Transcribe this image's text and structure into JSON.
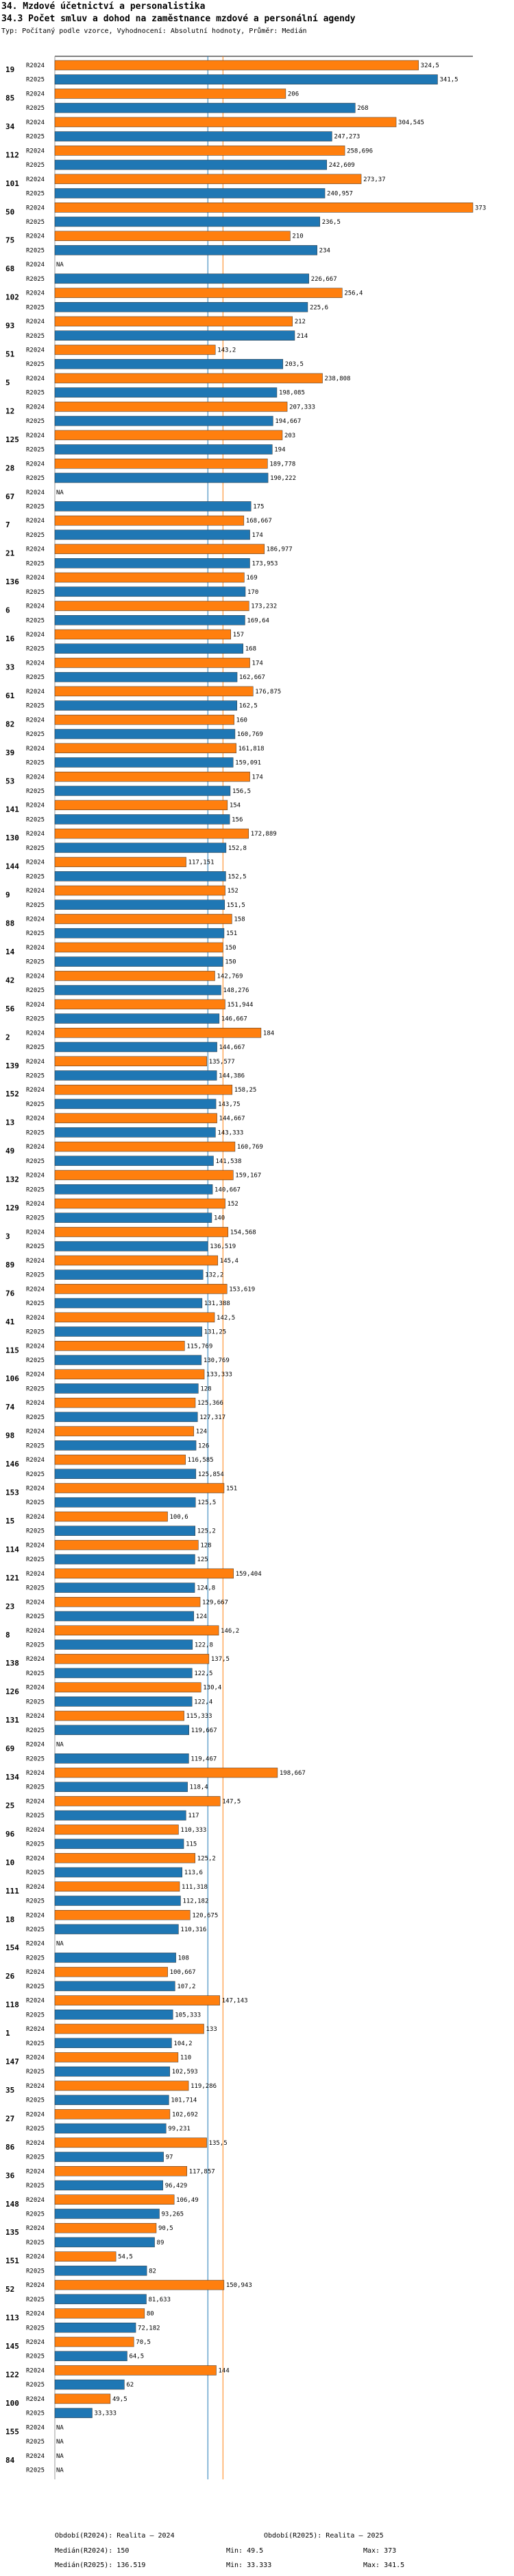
{
  "page_title": "34. Mzdové účetnictví a personalistika",
  "chart_data": {
    "type": "bar",
    "title": "34.3 Počet smluv a dohod na zaměstnance mzdové a personální agendy",
    "subtitle": "Typ: Počítaný podle vzorce, Vyhodnocení: Absolutní hodnoty, Průměr: Medián",
    "series_labels": [
      "R2024",
      "R2025"
    ],
    "series_colors": [
      "#ff7f0e",
      "#1f77b4"
    ],
    "na_label": "NA",
    "xlim": [
      0,
      373
    ],
    "medians": [
      150,
      136.519
    ],
    "median_colors": [
      "#ff7f0e",
      "#1f77b4"
    ],
    "groups": [
      {
        "id": "19",
        "values": [
          324.5,
          341.5
        ],
        "labels": [
          "324,5",
          "341,5"
        ]
      },
      {
        "id": "85",
        "values": [
          206,
          268
        ],
        "labels": [
          "206",
          "268"
        ]
      },
      {
        "id": "34",
        "values": [
          304.545,
          247.273
        ],
        "labels": [
          "304,545",
          "247,273"
        ]
      },
      {
        "id": "112",
        "values": [
          258.696,
          242.609
        ],
        "labels": [
          "258,696",
          "242,609"
        ]
      },
      {
        "id": "101",
        "values": [
          273.37,
          240.957
        ],
        "labels": [
          "273,37",
          "240,957"
        ]
      },
      {
        "id": "50",
        "values": [
          373,
          236.5
        ],
        "labels": [
          "373",
          "236,5"
        ]
      },
      {
        "id": "75",
        "values": [
          210,
          234
        ],
        "labels": [
          "210",
          "234"
        ]
      },
      {
        "id": "68",
        "values": [
          null,
          226.667
        ],
        "labels": [
          "NA",
          "226,667"
        ]
      },
      {
        "id": "102",
        "values": [
          256.4,
          225.6
        ],
        "labels": [
          "256,4",
          "225,6"
        ]
      },
      {
        "id": "93",
        "values": [
          212,
          214
        ],
        "labels": [
          "212",
          "214"
        ]
      },
      {
        "id": "51",
        "values": [
          143.2,
          203.5
        ],
        "labels": [
          "143,2",
          "203,5"
        ]
      },
      {
        "id": "5",
        "values": [
          238.808,
          198.085
        ],
        "labels": [
          "238,808",
          "198,085"
        ]
      },
      {
        "id": "12",
        "values": [
          207.333,
          194.667
        ],
        "labels": [
          "207,333",
          "194,667"
        ]
      },
      {
        "id": "125",
        "values": [
          203,
          194
        ],
        "labels": [
          "203",
          "194"
        ]
      },
      {
        "id": "28",
        "values": [
          189.778,
          190.222
        ],
        "labels": [
          "189,778",
          "190,222"
        ]
      },
      {
        "id": "67",
        "values": [
          null,
          175
        ],
        "labels": [
          "NA",
          "175"
        ]
      },
      {
        "id": "7",
        "values": [
          168.667,
          174
        ],
        "labels": [
          "168,667",
          "174"
        ]
      },
      {
        "id": "21",
        "values": [
          186.977,
          173.953
        ],
        "labels": [
          "186,977",
          "173,953"
        ]
      },
      {
        "id": "136",
        "values": [
          169,
          170
        ],
        "labels": [
          "169",
          "170"
        ]
      },
      {
        "id": "6",
        "values": [
          173.232,
          169.64
        ],
        "labels": [
          "173,232",
          "169,64"
        ]
      },
      {
        "id": "16",
        "values": [
          157,
          168
        ],
        "labels": [
          "157",
          "168"
        ]
      },
      {
        "id": "33",
        "values": [
          174,
          162.667
        ],
        "labels": [
          "174",
          "162,667"
        ]
      },
      {
        "id": "61",
        "values": [
          176.875,
          162.5
        ],
        "labels": [
          "176,875",
          "162,5"
        ]
      },
      {
        "id": "82",
        "values": [
          160,
          160.769
        ],
        "labels": [
          "160",
          "160,769"
        ]
      },
      {
        "id": "39",
        "values": [
          161.818,
          159.091
        ],
        "labels": [
          "161,818",
          "159,091"
        ]
      },
      {
        "id": "53",
        "values": [
          174,
          156.5
        ],
        "labels": [
          "174",
          "156,5"
        ]
      },
      {
        "id": "141",
        "values": [
          154,
          156
        ],
        "labels": [
          "154",
          "156"
        ]
      },
      {
        "id": "130",
        "values": [
          172.889,
          152.8
        ],
        "labels": [
          "172,889",
          "152,8"
        ]
      },
      {
        "id": "144",
        "values": [
          117.151,
          152.5
        ],
        "labels": [
          "117,151",
          "152,5"
        ]
      },
      {
        "id": "9",
        "values": [
          152,
          151.5
        ],
        "labels": [
          "152",
          "151,5"
        ]
      },
      {
        "id": "88",
        "values": [
          158,
          151
        ],
        "labels": [
          "158",
          "151"
        ]
      },
      {
        "id": "14",
        "values": [
          150,
          150
        ],
        "labels": [
          "150",
          "150"
        ]
      },
      {
        "id": "42",
        "values": [
          142.769,
          148.276
        ],
        "labels": [
          "142,769",
          "148,276"
        ]
      },
      {
        "id": "56",
        "values": [
          151.944,
          146.667
        ],
        "labels": [
          "151,944",
          "146,667"
        ]
      },
      {
        "id": "2",
        "values": [
          184,
          144.667
        ],
        "labels": [
          "184",
          "144,667"
        ]
      },
      {
        "id": "139",
        "values": [
          135.577,
          144.386
        ],
        "labels": [
          "135,577",
          "144,386"
        ]
      },
      {
        "id": "152",
        "values": [
          158.25,
          143.75
        ],
        "labels": [
          "158,25",
          "143,75"
        ]
      },
      {
        "id": "13",
        "values": [
          144.667,
          143.333
        ],
        "labels": [
          "144,667",
          "143,333"
        ]
      },
      {
        "id": "49",
        "values": [
          160.769,
          141.538
        ],
        "labels": [
          "160,769",
          "141,538"
        ]
      },
      {
        "id": "132",
        "values": [
          159.167,
          140.667
        ],
        "labels": [
          "159,167",
          "140,667"
        ]
      },
      {
        "id": "129",
        "values": [
          152,
          140
        ],
        "labels": [
          "152",
          "140"
        ]
      },
      {
        "id": "3",
        "values": [
          154.568,
          136.519
        ],
        "labels": [
          "154,568",
          "136,519"
        ]
      },
      {
        "id": "89",
        "values": [
          145.4,
          132.2
        ],
        "labels": [
          "145,4",
          "132,2"
        ]
      },
      {
        "id": "76",
        "values": [
          153.619,
          131.388
        ],
        "labels": [
          "153,619",
          "131,388"
        ]
      },
      {
        "id": "41",
        "values": [
          142.5,
          131.25
        ],
        "labels": [
          "142,5",
          "131,25"
        ]
      },
      {
        "id": "115",
        "values": [
          115.769,
          130.769
        ],
        "labels": [
          "115,769",
          "130,769"
        ]
      },
      {
        "id": "106",
        "values": [
          133.333,
          128
        ],
        "labels": [
          "133,333",
          "128"
        ]
      },
      {
        "id": "74",
        "values": [
          125.366,
          127.317
        ],
        "labels": [
          "125,366",
          "127,317"
        ]
      },
      {
        "id": "98",
        "values": [
          124,
          126
        ],
        "labels": [
          "124",
          "126"
        ]
      },
      {
        "id": "146",
        "values": [
          116.585,
          125.854
        ],
        "labels": [
          "116,585",
          "125,854"
        ]
      },
      {
        "id": "153",
        "values": [
          151,
          125.5
        ],
        "labels": [
          "151",
          "125,5"
        ]
      },
      {
        "id": "15",
        "values": [
          100.6,
          125.2
        ],
        "labels": [
          "100,6",
          "125,2"
        ]
      },
      {
        "id": "114",
        "values": [
          128,
          125
        ],
        "labels": [
          "128",
          "125"
        ]
      },
      {
        "id": "121",
        "values": [
          159.404,
          124.8
        ],
        "labels": [
          "159,404",
          "124,8"
        ]
      },
      {
        "id": "23",
        "values": [
          129.667,
          124
        ],
        "labels": [
          "129,667",
          "124"
        ]
      },
      {
        "id": "8",
        "values": [
          146.2,
          122.8
        ],
        "labels": [
          "146,2",
          "122,8"
        ]
      },
      {
        "id": "138",
        "values": [
          137.5,
          122.5
        ],
        "labels": [
          "137,5",
          "122,5"
        ]
      },
      {
        "id": "126",
        "values": [
          130.4,
          122.4
        ],
        "labels": [
          "130,4",
          "122,4"
        ]
      },
      {
        "id": "131",
        "values": [
          115.333,
          119.667
        ],
        "labels": [
          "115,333",
          "119,667"
        ]
      },
      {
        "id": "69",
        "values": [
          null,
          119.467
        ],
        "labels": [
          "NA",
          "119,467"
        ]
      },
      {
        "id": "134",
        "values": [
          198.667,
          118.4
        ],
        "labels": [
          "198,667",
          "118,4"
        ]
      },
      {
        "id": "25",
        "values": [
          147.5,
          117
        ],
        "labels": [
          "147,5",
          "117"
        ]
      },
      {
        "id": "96",
        "values": [
          110.333,
          115
        ],
        "labels": [
          "110,333",
          "115"
        ]
      },
      {
        "id": "10",
        "values": [
          125.2,
          113.6
        ],
        "labels": [
          "125,2",
          "113,6"
        ]
      },
      {
        "id": "111",
        "values": [
          111.318,
          112.182
        ],
        "labels": [
          "111,318",
          "112,182"
        ]
      },
      {
        "id": "18",
        "values": [
          120.675,
          110.316
        ],
        "labels": [
          "120,675",
          "110,316"
        ]
      },
      {
        "id": "154",
        "values": [
          null,
          108
        ],
        "labels": [
          "NA",
          "108"
        ]
      },
      {
        "id": "26",
        "values": [
          100.667,
          107.2
        ],
        "labels": [
          "100,667",
          "107,2"
        ]
      },
      {
        "id": "118",
        "values": [
          147.143,
          105.333
        ],
        "labels": [
          "147,143",
          "105,333"
        ]
      },
      {
        "id": "1",
        "values": [
          133,
          104.2
        ],
        "labels": [
          "133",
          "104,2"
        ]
      },
      {
        "id": "147",
        "values": [
          110,
          102.593
        ],
        "labels": [
          "110",
          "102,593"
        ]
      },
      {
        "id": "35",
        "values": [
          119.286,
          101.714
        ],
        "labels": [
          "119,286",
          "101,714"
        ]
      },
      {
        "id": "27",
        "values": [
          102.692,
          99.231
        ],
        "labels": [
          "102,692",
          "99,231"
        ]
      },
      {
        "id": "86",
        "values": [
          135.5,
          97
        ],
        "labels": [
          "135,5",
          "97"
        ]
      },
      {
        "id": "36",
        "values": [
          117.857,
          96.429
        ],
        "labels": [
          "117,857",
          "96,429"
        ]
      },
      {
        "id": "148",
        "values": [
          106.49,
          93.265
        ],
        "labels": [
          "106,49",
          "93,265"
        ]
      },
      {
        "id": "135",
        "values": [
          90.5,
          89
        ],
        "labels": [
          "90,5",
          "89"
        ]
      },
      {
        "id": "151",
        "values": [
          54.5,
          82
        ],
        "labels": [
          "54,5",
          "82"
        ]
      },
      {
        "id": "52",
        "values": [
          150.943,
          81.633
        ],
        "labels": [
          "150,943",
          "81,633"
        ]
      },
      {
        "id": "113",
        "values": [
          80,
          72.182
        ],
        "labels": [
          "80",
          "72,182"
        ]
      },
      {
        "id": "145",
        "values": [
          70.5,
          64.5
        ],
        "labels": [
          "70,5",
          "64,5"
        ]
      },
      {
        "id": "122",
        "values": [
          144,
          62
        ],
        "labels": [
          "144",
          "62"
        ]
      },
      {
        "id": "100",
        "values": [
          49.5,
          33.333
        ],
        "labels": [
          "49,5",
          "33,333"
        ]
      },
      {
        "id": "155",
        "values": [
          null,
          null
        ],
        "labels": [
          "NA",
          "NA"
        ]
      },
      {
        "id": "84",
        "values": [
          null,
          null
        ],
        "labels": [
          "NA",
          "NA"
        ]
      }
    ]
  },
  "footer": {
    "left_1": "Období(R2024): Realita – 2024",
    "right_1": "Období(R2025): Realita – 2025",
    "left_2": "Medián(R2024): 150",
    "mid_2": "Min: 49.5",
    "right_2": "Max: 373",
    "left_3": "Medián(R2025): 136.519",
    "mid_3": "Min: 33.333",
    "right_3": "Max: 341.5"
  }
}
